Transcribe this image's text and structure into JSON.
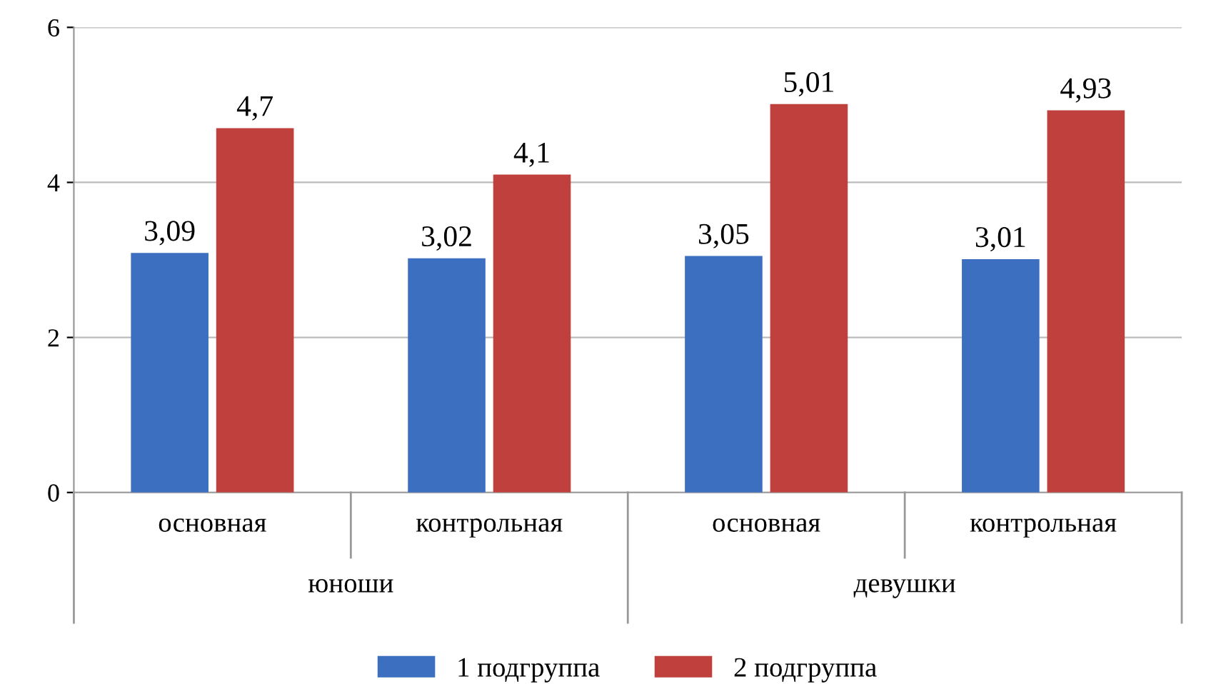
{
  "chart_data": {
    "type": "bar",
    "categories": [
      "основная",
      "контрольная",
      "основная",
      "контрольная"
    ],
    "series": [
      {
        "name": "1 подгруппа",
        "color": "#3d6fc0",
        "values": [
          3.09,
          3.02,
          3.05,
          3.01
        ],
        "value_labels": [
          "3,09",
          "3,02",
          "3,05",
          "3,01"
        ]
      },
      {
        "name": "2 подгруппа",
        "color": "#c0403d",
        "values": [
          4.7,
          4.1,
          5.01,
          4.93
        ],
        "value_labels": [
          "4,7",
          "4,1",
          "5,01",
          "4,93"
        ]
      }
    ],
    "annotations": [
      "юноши",
      "девушки"
    ],
    "ylim": [
      0,
      6
    ],
    "yticks": [
      0,
      2,
      4,
      6
    ],
    "grid": "y",
    "legend": "bottom"
  }
}
